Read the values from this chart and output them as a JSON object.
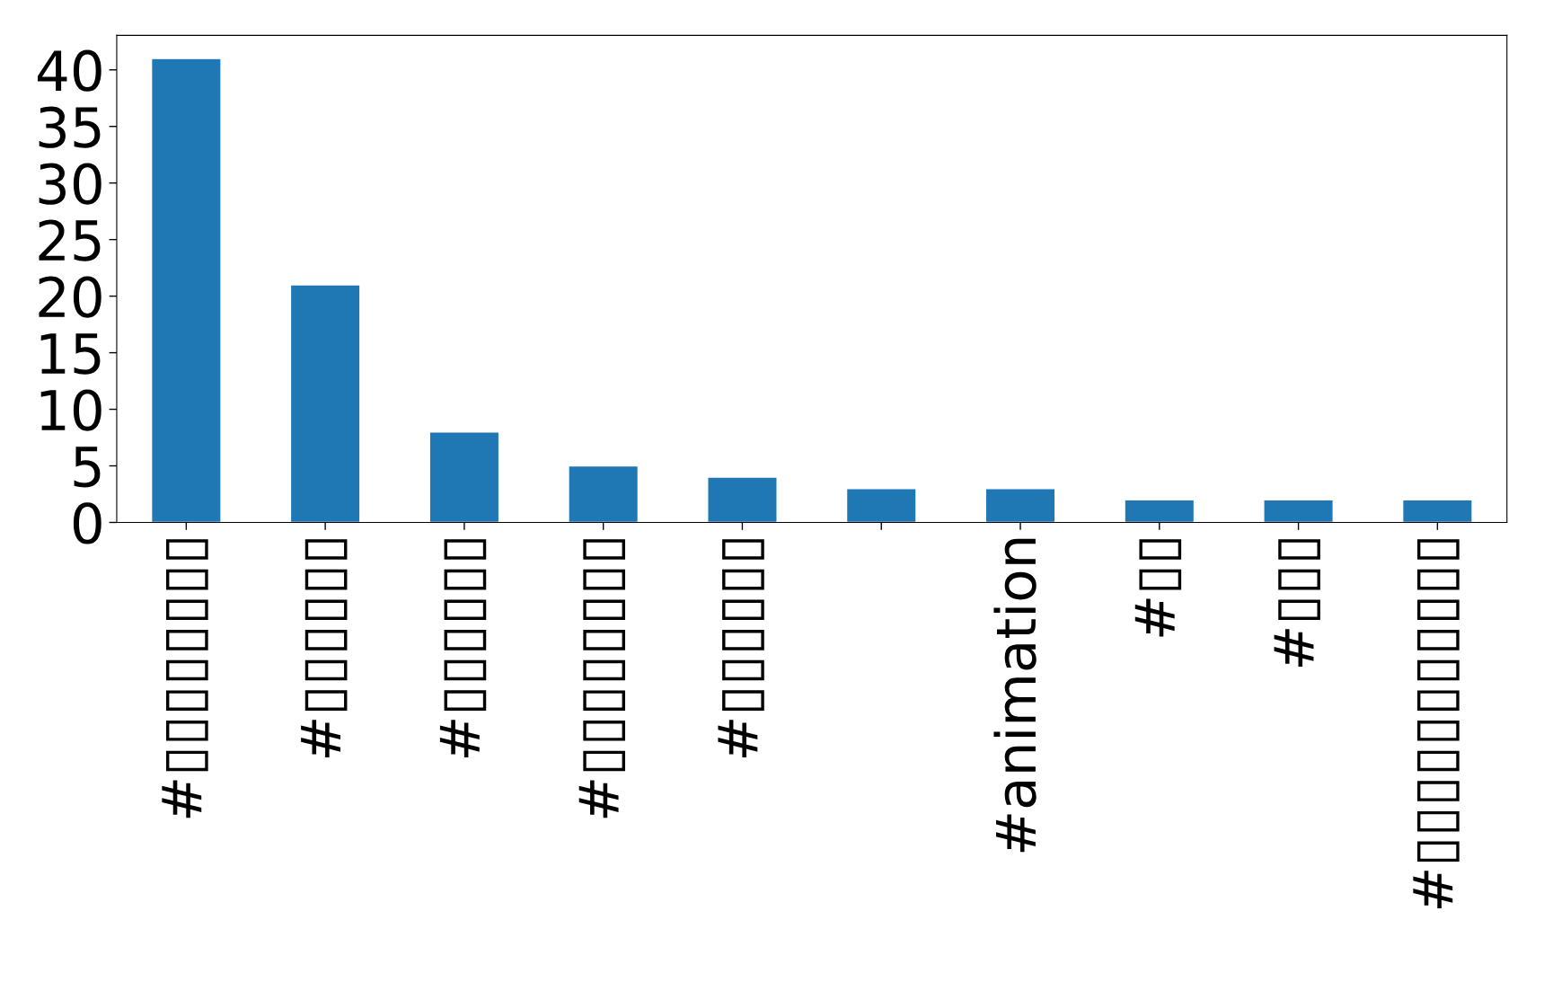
{
  "chart_data": {
    "type": "bar",
    "categories": [
      "#▯▯▯▯▯▯▯▯",
      "#▯▯▯▯▯▯",
      "#▯▯▯▯▯▯",
      "#▯▯▯▯▯▯▯▯",
      "#▯▯▯▯▯▯",
      null,
      "#animation",
      "#▯▯",
      "#▯▯▯",
      "#▯▯▯▯▯▯▯▯▯▯▯"
    ],
    "values": [
      41,
      21,
      8,
      5,
      4,
      3,
      3,
      2,
      2,
      2
    ],
    "color": "#1f77b4",
    "ylim": [
      0,
      43.05
    ],
    "yticks": [
      0,
      5,
      10,
      15,
      20,
      25,
      30,
      35,
      40
    ],
    "grid": false,
    "legend": false
  }
}
